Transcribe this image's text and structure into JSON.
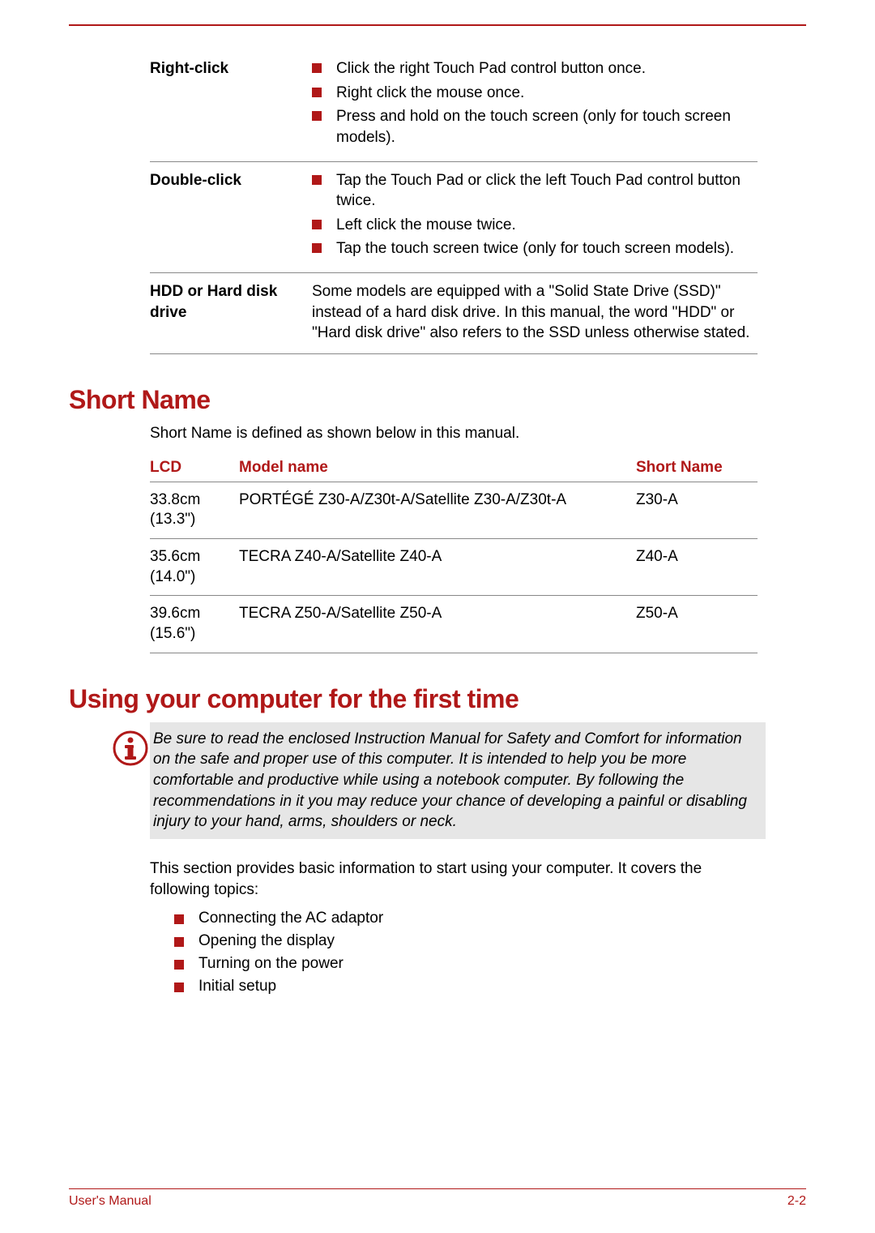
{
  "colors": {
    "accent": "#b01818",
    "rule": "#888888",
    "note_bg": "#e6e6e6",
    "text": "#000000",
    "background": "#ffffff"
  },
  "typography": {
    "body_fontsize_pt": 14,
    "heading_fontsize_pt": 24,
    "heading_weight": 900
  },
  "terms_table": {
    "rows": [
      {
        "term": "Right-click",
        "type": "bullets",
        "items": [
          "Click the right Touch Pad control button once.",
          "Right click the mouse once.",
          "Press and hold on the touch screen (only for touch screen models)."
        ]
      },
      {
        "term": "Double-click",
        "type": "bullets",
        "items": [
          "Tap the Touch Pad or click the left Touch Pad control button twice.",
          "Left click the mouse twice.",
          "Tap the touch screen twice (only for touch screen models)."
        ]
      },
      {
        "term": "HDD or Hard disk drive",
        "type": "text",
        "text": "Some models are equipped with a \"Solid State Drive (SSD)\" instead of a hard disk drive. In this manual, the word \"HDD\" or \"Hard disk drive\" also refers to the SSD unless otherwise stated."
      }
    ]
  },
  "short_name": {
    "heading": "Short Name",
    "intro": "Short Name is defined as shown below in this manual.",
    "columns": [
      "LCD",
      "Model name",
      "Short Name"
    ],
    "rows": [
      {
        "lcd": "33.8cm (13.3\")",
        "model": "PORTÉGÉ Z30-A/Z30t-A/Satellite Z30-A/Z30t-A",
        "short": "Z30-A"
      },
      {
        "lcd": "35.6cm (14.0\")",
        "model": "TECRA Z40-A/Satellite Z40-A",
        "short": "Z40-A"
      },
      {
        "lcd": "39.6cm (15.6\")",
        "model": "TECRA Z50-A/Satellite Z50-A",
        "short": "Z50-A"
      }
    ]
  },
  "first_time": {
    "heading": "Using your computer for the first time",
    "note": "Be sure to read the enclosed Instruction Manual for Safety and Comfort for information on the safe and proper use of this computer. It is intended to help you be more comfortable and productive while using a notebook computer. By following the recommendations in it you may reduce your chance of developing a painful or disabling injury to your hand, arms, shoulders or neck.",
    "intro": "This section provides basic information to start using your computer. It covers the following topics:",
    "topics": [
      "Connecting the AC adaptor",
      "Opening the display",
      "Turning on the power",
      "Initial setup"
    ]
  },
  "footer": {
    "left": "User's Manual",
    "right": "2-2"
  }
}
